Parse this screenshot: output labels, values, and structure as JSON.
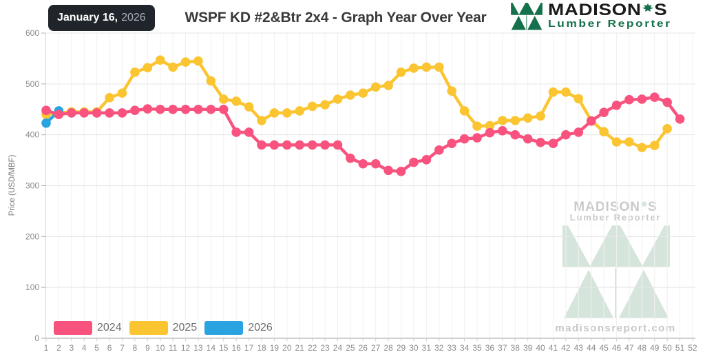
{
  "header": {
    "badge": {
      "date": "January 16,",
      "year": "2026"
    },
    "title": "WSPF KD #2&Btr 2x4 - Graph Year Over Year",
    "logo": {
      "brand_prefix": "MADISON",
      "brand_suffix": "S",
      "subtitle": "Lumber Reporter"
    }
  },
  "watermark": {
    "brand_prefix": "MADISON",
    "brand_suffix": "S",
    "subtitle": "Lumber Reporter",
    "site": "madisonsreport.com"
  },
  "colors": {
    "brand_green": "#15714B",
    "watermark_green": "#D6E5DC",
    "series_2024": "#F8537F",
    "series_2025": "#FBC531",
    "series_2026": "#29A4E0",
    "badge_bg": "#20252B"
  },
  "chart_data": {
    "type": "line",
    "title": "WSPF KD #2&Btr 2x4 - Graph Year Over Year",
    "xlabel": "",
    "ylabel": "Price (USD/MBF)",
    "ylim": [
      0,
      600
    ],
    "yticks": [
      0,
      100,
      200,
      300,
      400,
      500,
      600
    ],
    "x": [
      1,
      2,
      3,
      4,
      5,
      6,
      7,
      8,
      9,
      10,
      11,
      12,
      13,
      14,
      15,
      16,
      17,
      18,
      19,
      20,
      21,
      22,
      23,
      24,
      25,
      26,
      27,
      28,
      29,
      30,
      31,
      32,
      33,
      34,
      35,
      36,
      37,
      38,
      39,
      40,
      41,
      42,
      43,
      44,
      45,
      46,
      47,
      48,
      49,
      50,
      51,
      52
    ],
    "grid": true,
    "legend_position": "bottom-left",
    "series": [
      {
        "name": "2024",
        "color": "#F8537F",
        "values": [
          448,
          440,
          443,
          443,
          443,
          443,
          443,
          448,
          451,
          450,
          450,
          450,
          450,
          450,
          450,
          405,
          405,
          380,
          380,
          380,
          380,
          380,
          380,
          380,
          354,
          343,
          343,
          330,
          328,
          346,
          351,
          370,
          383,
          392,
          394,
          404,
          408,
          400,
          392,
          385,
          383,
          400,
          405,
          427,
          444,
          458,
          469,
          470,
          474,
          464,
          431
        ]
      },
      {
        "name": "2025",
        "color": "#FBC531",
        "values": [
          440,
          443,
          445,
          445,
          445,
          473,
          482,
          523,
          532,
          547,
          533,
          543,
          545,
          506,
          470,
          466,
          455,
          428,
          443,
          443,
          447,
          456,
          459,
          470,
          478,
          482,
          494,
          497,
          523,
          531,
          533,
          533,
          486,
          447,
          417,
          418,
          428,
          428,
          433,
          437,
          484,
          484,
          471,
          428,
          406,
          386,
          386,
          375,
          379,
          412
        ]
      },
      {
        "name": "2026",
        "color": "#29A4E0",
        "values": [
          423,
          447
        ]
      }
    ]
  }
}
